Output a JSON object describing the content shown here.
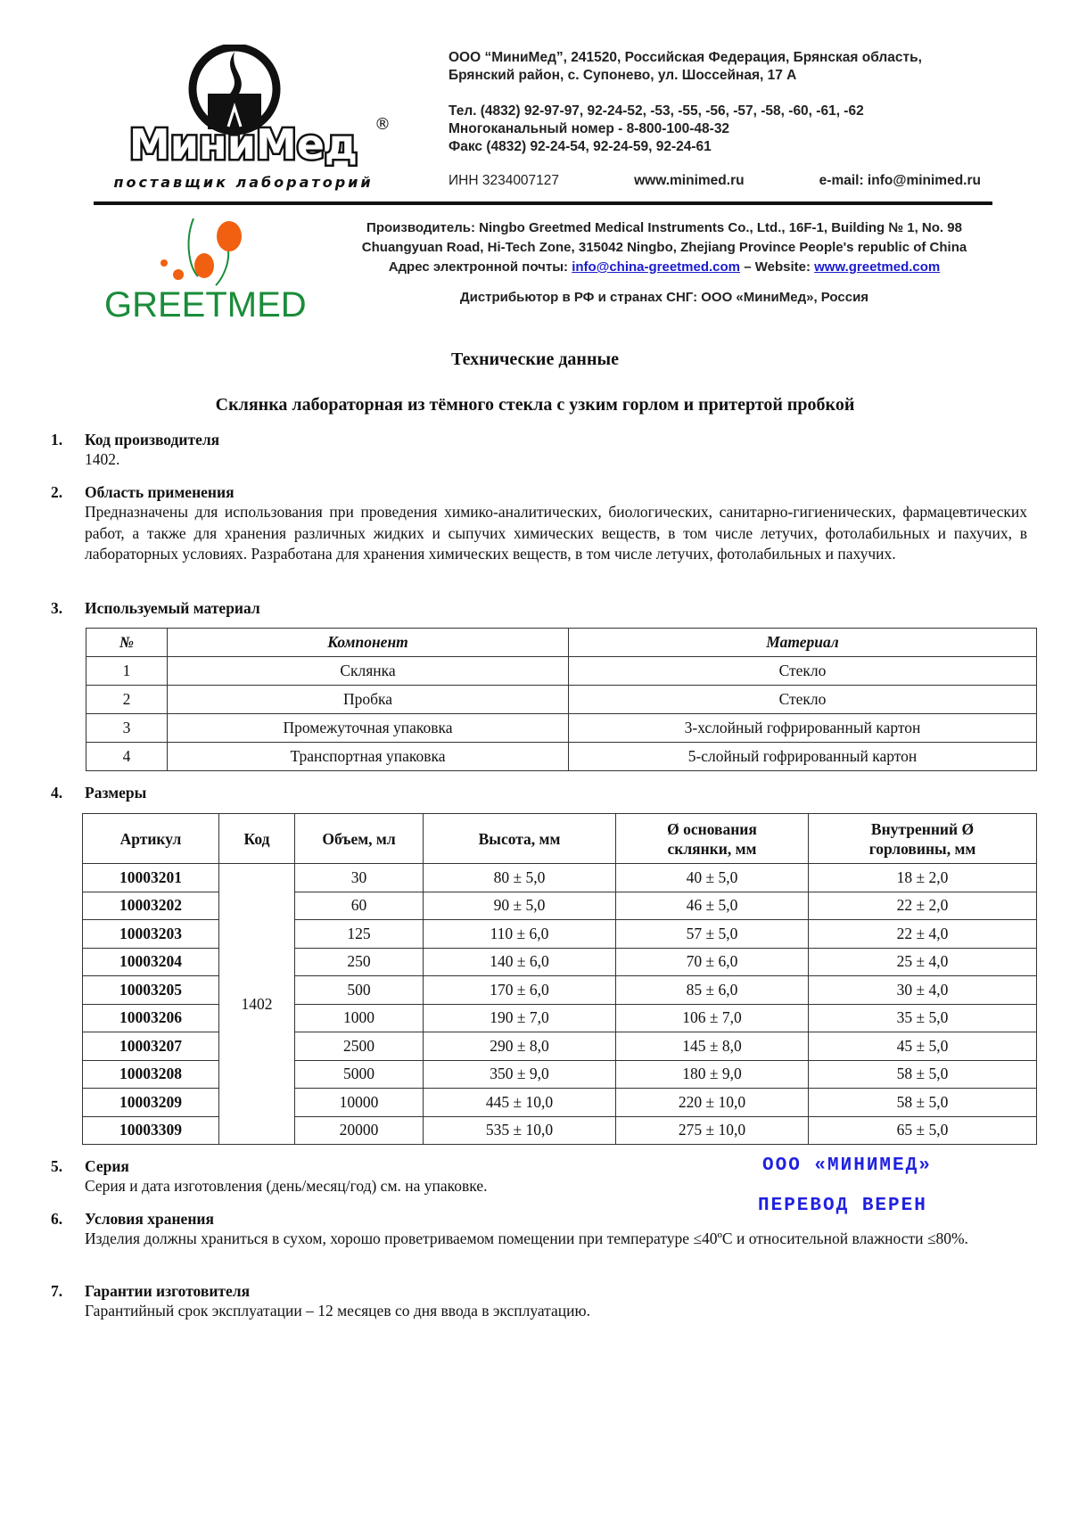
{
  "header": {
    "logo_text": "МиниМед",
    "logo_tagline": "поставщик лабораторий",
    "address_line1": "ООО “МиниМед”, 241520, Российская Федерация, Брянская область,",
    "address_line2": "Брянский район, с. Супонево, ул. Шоссейная, 17 А",
    "phone": "Тел. (4832) 92-97-97, 92-24-52, -53, -55, -56, -57, -58, -60, -61, -62",
    "multichannel": "Многоканальный номер - 8-800-100-48-32",
    "fax": "Факс (4832) 92-24-54, 92-24-59, 92-24-61",
    "inn": "ИНН 3234007127",
    "website": "www.minimed.ru",
    "email": "e-mail: info@minimed.ru"
  },
  "manufacturer": {
    "logo_text": "GREETMED",
    "line1": "Производитель: Ningbo Greetmed Medical Instruments Co., Ltd., 16F-1, Building № 1, No. 98",
    "line2": "Chuangyuan Road, Hi-Tech Zone, 315042 Ningbo, Zhejiang Province People's republic of China",
    "email_label": "Адрес электронной почты:",
    "email": "info@china-greetmed.com",
    "website_label": "– Website:",
    "website": "www.greetmed.com",
    "distributor": "Дистрибьютор в РФ и странах СНГ: ООО «МиниМед», Россия"
  },
  "doc": {
    "title": "Технические данные",
    "subtitle": "Склянка лабораторная из тёмного стекла с узким горлом и притертой пробкой",
    "sections": [
      {
        "num": "1.",
        "heading": "Код производителя",
        "text": "1402."
      },
      {
        "num": "2.",
        "heading": "Область применения",
        "text": "Предназначены для использования при проведения химико-аналитических, биологических, санитарно-гигиенических, фармацевтических работ, а также для хранения различных жидких и сыпучих химических веществ, в том числе летучих, фотолабильных и пахучих, в лабораторных условиях. Разработана для хранения химических веществ, в том числе летучих, фотолабильных и пахучих."
      },
      {
        "num": "3.",
        "heading": "Используемый материал"
      },
      {
        "num": "4.",
        "heading": "Размеры"
      },
      {
        "num": "5.",
        "heading": "Серия",
        "text": "Серия и дата изготовления (день/месяц/год) см. на упаковке."
      },
      {
        "num": "6.",
        "heading": "Условия хранения",
        "text": "Изделия должны храниться в сухом, хорошо проветриваемом помещении при температуре ≤40ºС и относительной влажности ≤80%."
      },
      {
        "num": "7.",
        "heading": "Гарантии изготовителя",
        "text": "Гарантийный срок эксплуатации – 12 месяцев со дня ввода в эксплуатацию."
      }
    ]
  },
  "materials": {
    "headers": [
      "№",
      "Компонент",
      "Материал"
    ],
    "rows": [
      [
        "1",
        "Склянка",
        "Стекло"
      ],
      [
        "2",
        "Пробка",
        "Стекло"
      ],
      [
        "3",
        "Промежуточная упаковка",
        "3-хслойный гофрированный картон"
      ],
      [
        "4",
        "Транспортная упаковка",
        "5-слойный гофрированный картон"
      ]
    ]
  },
  "sizes": {
    "headers": [
      "Артикул",
      "Код",
      "Объем, мл",
      "Высота, мм",
      "Ø основания склянки, мм",
      "Внутренний Ø горловины, мм"
    ],
    "code": "1402",
    "rows": [
      [
        "10003201",
        "30",
        "80 ± 5,0",
        "40 ± 5,0",
        "18 ± 2,0"
      ],
      [
        "10003202",
        "60",
        "90 ± 5,0",
        "46 ± 5,0",
        "22 ± 2,0"
      ],
      [
        "10003203",
        "125",
        "110 ± 6,0",
        "57 ± 5,0",
        "22 ± 4,0"
      ],
      [
        "10003204",
        "250",
        "140 ± 6,0",
        "70 ± 6,0",
        "25 ± 4,0"
      ],
      [
        "10003205",
        "500",
        "170 ± 6,0",
        "85 ± 6,0",
        "30 ± 4,0"
      ],
      [
        "10003206",
        "1000",
        "190 ± 7,0",
        "106 ± 7,0",
        "35 ± 5,0"
      ],
      [
        "10003207",
        "2500",
        "290 ± 8,0",
        "145 ± 8,0",
        "45 ± 5,0"
      ],
      [
        "10003208",
        "5000",
        "350 ± 9,0",
        "180 ± 9,0",
        "58 ± 5,0"
      ],
      [
        "10003209",
        "10000",
        "445 ± 10,0",
        "220 ± 10,0",
        "58 ± 5,0"
      ],
      [
        "10003309",
        "20000",
        "535 ± 10,0",
        "275 ± 10,0",
        "65 ± 5,0"
      ]
    ]
  },
  "stamp": {
    "line1": "ООО «МИНИМЕД»",
    "line2": "ПЕРЕВОД ВЕРЕН",
    "color": "#2020e0"
  }
}
